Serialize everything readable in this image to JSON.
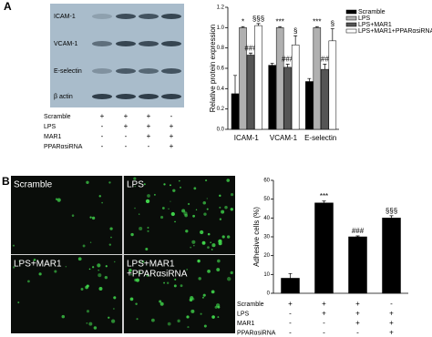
{
  "panel_labels": [
    "A",
    "B"
  ],
  "blot": {
    "proteins": [
      "ICAM-1",
      "VCAM-1",
      "E-selectin",
      "β actin"
    ],
    "treatment": {
      "rows": [
        {
          "label": "Scramble",
          "signs": [
            "+",
            "+",
            "+",
            "-"
          ]
        },
        {
          "label": "LPS",
          "signs": [
            "-",
            "+",
            "+",
            "+"
          ]
        },
        {
          "label": "MAR1",
          "signs": [
            "-",
            "-",
            "+",
            "+"
          ]
        },
        {
          "label": "PPARαsiRNA",
          "signs": [
            "-",
            "-",
            "-",
            "+"
          ]
        }
      ]
    }
  },
  "images": {
    "labels": [
      [
        "Scramble"
      ],
      [
        "LPS"
      ],
      [
        "LPS+MAR1"
      ],
      [
        "LPS+MAR1",
        "+PPARαsiRNA"
      ]
    ]
  },
  "chart_data": [
    {
      "type": "bar",
      "ylabel": "Relative protein expression",
      "categories": [
        "ICAM-1",
        "VCAM-1",
        "E-selectin"
      ],
      "series": [
        {
          "name": "Scramble",
          "color": "#000000",
          "values": [
            0.35,
            0.63,
            0.47
          ],
          "errors": [
            0.18,
            0.02,
            0.03
          ]
        },
        {
          "name": "LPS",
          "color": "#b0b0b0",
          "values": [
            1.0,
            1.0,
            1.0
          ],
          "errors": [
            0.01,
            0.01,
            0.01
          ],
          "annotations": [
            "*",
            "***",
            "***"
          ]
        },
        {
          "name": "LPS+MAR1",
          "color": "#555555",
          "values": [
            0.73,
            0.61,
            0.59
          ],
          "errors": [
            0.02,
            0.03,
            0.05
          ],
          "annotations": [
            "###",
            "###",
            "##"
          ]
        },
        {
          "name": "LPS+MAR1+PPARαsiRNA",
          "color": "#ffffff",
          "values": [
            1.02,
            0.83,
            0.87
          ],
          "errors": [
            0.02,
            0.09,
            0.12
          ],
          "annotations": [
            "§§§",
            "§",
            "§"
          ]
        }
      ],
      "ylim": [
        0,
        1.2
      ],
      "yticks": [
        {
          "value": 0,
          "label": "0.0"
        },
        {
          "value": 0.2,
          "label": "0.2"
        },
        {
          "value": 0.4,
          "label": "0.4"
        },
        {
          "value": 0.6,
          "label": "0.6"
        },
        {
          "value": 0.8,
          "label": "0.8"
        },
        {
          "value": 1.0,
          "label": "1.0"
        },
        {
          "value": 1.2,
          "label": "1.2"
        }
      ],
      "legend": "upper right"
    },
    {
      "type": "bar",
      "ylabel": "Adhesive cells (%)",
      "color": "#000000",
      "values": [
        8,
        48,
        30,
        40
      ],
      "errors": [
        2.5,
        1,
        0.5,
        1.2
      ],
      "annotations": [
        null,
        "***",
        "###",
        "§§§"
      ],
      "ylim": [
        0,
        60
      ],
      "yticks": [
        0,
        10,
        20,
        30,
        40,
        50,
        60
      ],
      "treatment": {
        "rows": [
          {
            "label": "Scramble",
            "signs": [
              "+",
              "+",
              "+",
              "-"
            ]
          },
          {
            "label": "LPS",
            "signs": [
              "-",
              "+",
              "+",
              "+"
            ]
          },
          {
            "label": "MAR1",
            "signs": [
              "-",
              "-",
              "+",
              "+"
            ]
          },
          {
            "label": "PPARαsiRNA",
            "signs": [
              "-",
              "-",
              "-",
              "+"
            ]
          }
        ]
      }
    }
  ]
}
